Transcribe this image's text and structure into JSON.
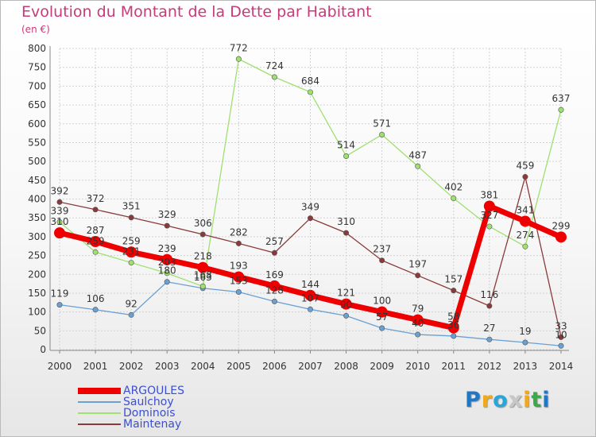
{
  "title": "Evolution du Montant de la Dette par Habitant",
  "unit": "(en €)",
  "logo": [
    "P",
    "r",
    "o",
    "x",
    "i",
    "t",
    "i"
  ],
  "logo_colors": [
    "#1f77c8",
    "#f2a81d",
    "#29a6d9",
    "#c7c7c7",
    "#f2a81d",
    "#3ba94a",
    "#1f77c8"
  ],
  "chart_data": {
    "type": "line",
    "x": [
      2000,
      2001,
      2002,
      2003,
      2004,
      2005,
      2006,
      2007,
      2008,
      2009,
      2010,
      2011,
      2012,
      2013,
      2014
    ],
    "ylim": [
      0,
      800
    ],
    "yticks": [
      0,
      50,
      100,
      150,
      200,
      250,
      300,
      350,
      400,
      450,
      500,
      550,
      600,
      650,
      700,
      750,
      800
    ],
    "grid": true,
    "legend_position": "bottom-left",
    "series": [
      {
        "name": "Saulchoy",
        "color": "#6aa0d2",
        "width": 1.3,
        "values": [
          119,
          106,
          92,
          180,
          163,
          153,
          128,
          107,
          90,
          57,
          40,
          36,
          27,
          19,
          10
        ],
        "labels": [
          "119",
          "106",
          "92",
          "180",
          "163",
          "153",
          "128",
          "107",
          "90",
          "57",
          "40",
          "36",
          "27",
          "19",
          "10"
        ]
      },
      {
        "name": "Dominois",
        "color": "#9fe070",
        "width": 1.3,
        "values": [
          339,
          259,
          231,
          203,
          168,
          772,
          724,
          684,
          514,
          571,
          487,
          402,
          327,
          274,
          637
        ],
        "labels": [
          "339",
          "259",
          "231",
          "203",
          "168",
          "772",
          "724",
          "684",
          "514",
          "571",
          "487",
          "402",
          "327",
          "274",
          "637"
        ]
      },
      {
        "name": "Maintenay",
        "color": "#8a3a3a",
        "width": 1.3,
        "values": [
          392,
          372,
          351,
          329,
          306,
          282,
          257,
          349,
          310,
          237,
          197,
          157,
          116,
          459,
          33
        ],
        "labels": [
          "392",
          "372",
          "351",
          "329",
          "306",
          "282",
          "257",
          "349",
          "310",
          "237",
          "197",
          "157",
          "116",
          "459",
          "33"
        ]
      },
      {
        "name": "ARGOULES",
        "color": "#ee0000",
        "width": 7,
        "values": [
          310,
          287,
          259,
          239,
          218,
          193,
          169,
          144,
          121,
          100,
          79,
          58,
          381,
          341,
          299
        ],
        "labels": [
          "310",
          "287",
          "259",
          "239",
          "218",
          "193",
          "169",
          "144",
          "121",
          "100",
          "79",
          "58",
          "381",
          "341",
          "299"
        ]
      }
    ],
    "legend_order": [
      "ARGOULES",
      "Saulchoy",
      "Dominois",
      "Maintenay"
    ]
  }
}
